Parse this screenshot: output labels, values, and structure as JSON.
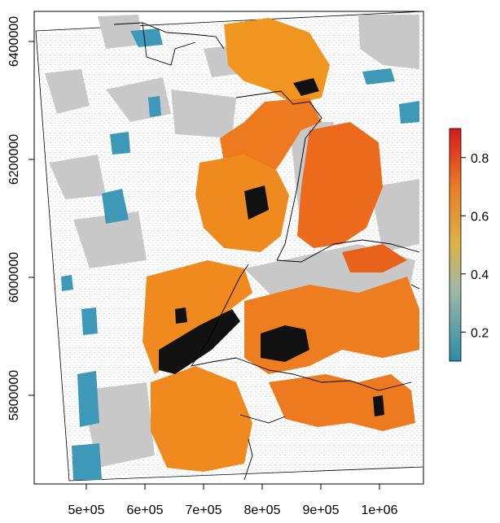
{
  "map": {
    "x_axis": {
      "ticks": [
        {
          "value": 500000,
          "label": "5e+05"
        },
        {
          "value": 600000,
          "label": "6e+05"
        },
        {
          "value": 700000,
          "label": "7e+05"
        },
        {
          "value": 800000,
          "label": "8e+05"
        },
        {
          "value": 900000,
          "label": "9e+05"
        },
        {
          "value": 1000000,
          "label": "1e+06"
        }
      ]
    },
    "y_axis": {
      "ticks": [
        {
          "value": 5800000,
          "label": "5800000"
        },
        {
          "value": 6000000,
          "label": "6000000"
        },
        {
          "value": 6200000,
          "label": "6200000"
        },
        {
          "value": 6400000,
          "label": "6400000"
        }
      ]
    },
    "legend": {
      "ticks": [
        {
          "value": 0.2,
          "label": "0.2"
        },
        {
          "value": 0.4,
          "label": "0.4"
        },
        {
          "value": 0.6,
          "label": "0.6"
        },
        {
          "value": 0.8,
          "label": "0.8"
        }
      ],
      "min": 0.1,
      "max": 0.9,
      "colors": [
        "#2b8ca6",
        "#5fa3b0",
        "#9cb8a6",
        "#d4b85a",
        "#e8a43a",
        "#ea7d22",
        "#e8531a",
        "#d7191c"
      ]
    },
    "colors": {
      "gray": "#c8c8c8",
      "blue": "#3e99b8",
      "orange": "#f08a1e",
      "red": "#e4501a",
      "black": "#111111"
    }
  }
}
